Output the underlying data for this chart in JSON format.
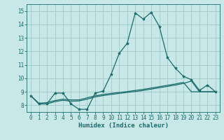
{
  "xlabel": "Humidex (Indice chaleur)",
  "bg_color": "#c8e8e8",
  "grid_color": "#a0c8c8",
  "line_color": "#1a6b6b",
  "spine_color": "#1a6b6b",
  "xlim_min": -0.5,
  "xlim_max": 23.5,
  "ylim_min": 7.5,
  "ylim_max": 15.5,
  "xticks": [
    0,
    1,
    2,
    3,
    4,
    5,
    6,
    7,
    8,
    9,
    10,
    11,
    12,
    13,
    14,
    15,
    16,
    17,
    18,
    19,
    20,
    21,
    22,
    23
  ],
  "yticks": [
    8,
    9,
    10,
    11,
    12,
    13,
    14,
    15
  ],
  "line1_x": [
    0,
    1,
    2,
    3,
    4,
    5,
    6,
    7,
    8,
    9,
    10,
    11,
    12,
    13,
    14,
    15,
    16,
    17,
    18,
    19,
    20,
    21,
    22,
    23
  ],
  "line1_y": [
    8.7,
    8.1,
    8.1,
    8.9,
    8.9,
    8.1,
    7.7,
    7.7,
    8.9,
    9.05,
    10.3,
    11.85,
    12.6,
    14.85,
    14.4,
    14.9,
    13.85,
    11.55,
    10.75,
    10.15,
    9.9,
    9.1,
    9.5,
    9.0
  ],
  "line2_x": [
    0,
    1,
    2,
    3,
    4,
    5,
    6,
    7,
    8,
    9,
    10,
    11,
    12,
    13,
    14,
    15,
    16,
    17,
    18,
    19,
    20,
    21,
    22,
    23
  ],
  "line2_y": [
    8.7,
    8.15,
    8.2,
    8.35,
    8.45,
    8.4,
    8.4,
    8.55,
    8.7,
    8.8,
    8.88,
    8.95,
    9.02,
    9.1,
    9.18,
    9.28,
    9.38,
    9.48,
    9.58,
    9.7,
    9.0,
    9.0,
    9.0,
    9.0
  ],
  "line3_x": [
    0,
    1,
    2,
    3,
    4,
    5,
    6,
    7,
    8,
    9,
    10,
    11,
    12,
    13,
    14,
    15,
    16,
    17,
    18,
    19,
    20,
    21,
    22,
    23
  ],
  "line3_y": [
    8.7,
    8.1,
    8.1,
    8.27,
    8.37,
    8.3,
    8.32,
    8.45,
    8.62,
    8.72,
    8.8,
    8.88,
    8.95,
    9.02,
    9.1,
    9.2,
    9.3,
    9.4,
    9.5,
    9.62,
    9.8,
    9.0,
    9.0,
    9.0
  ],
  "tick_fontsize": 5.5,
  "xlabel_fontsize": 6.5
}
